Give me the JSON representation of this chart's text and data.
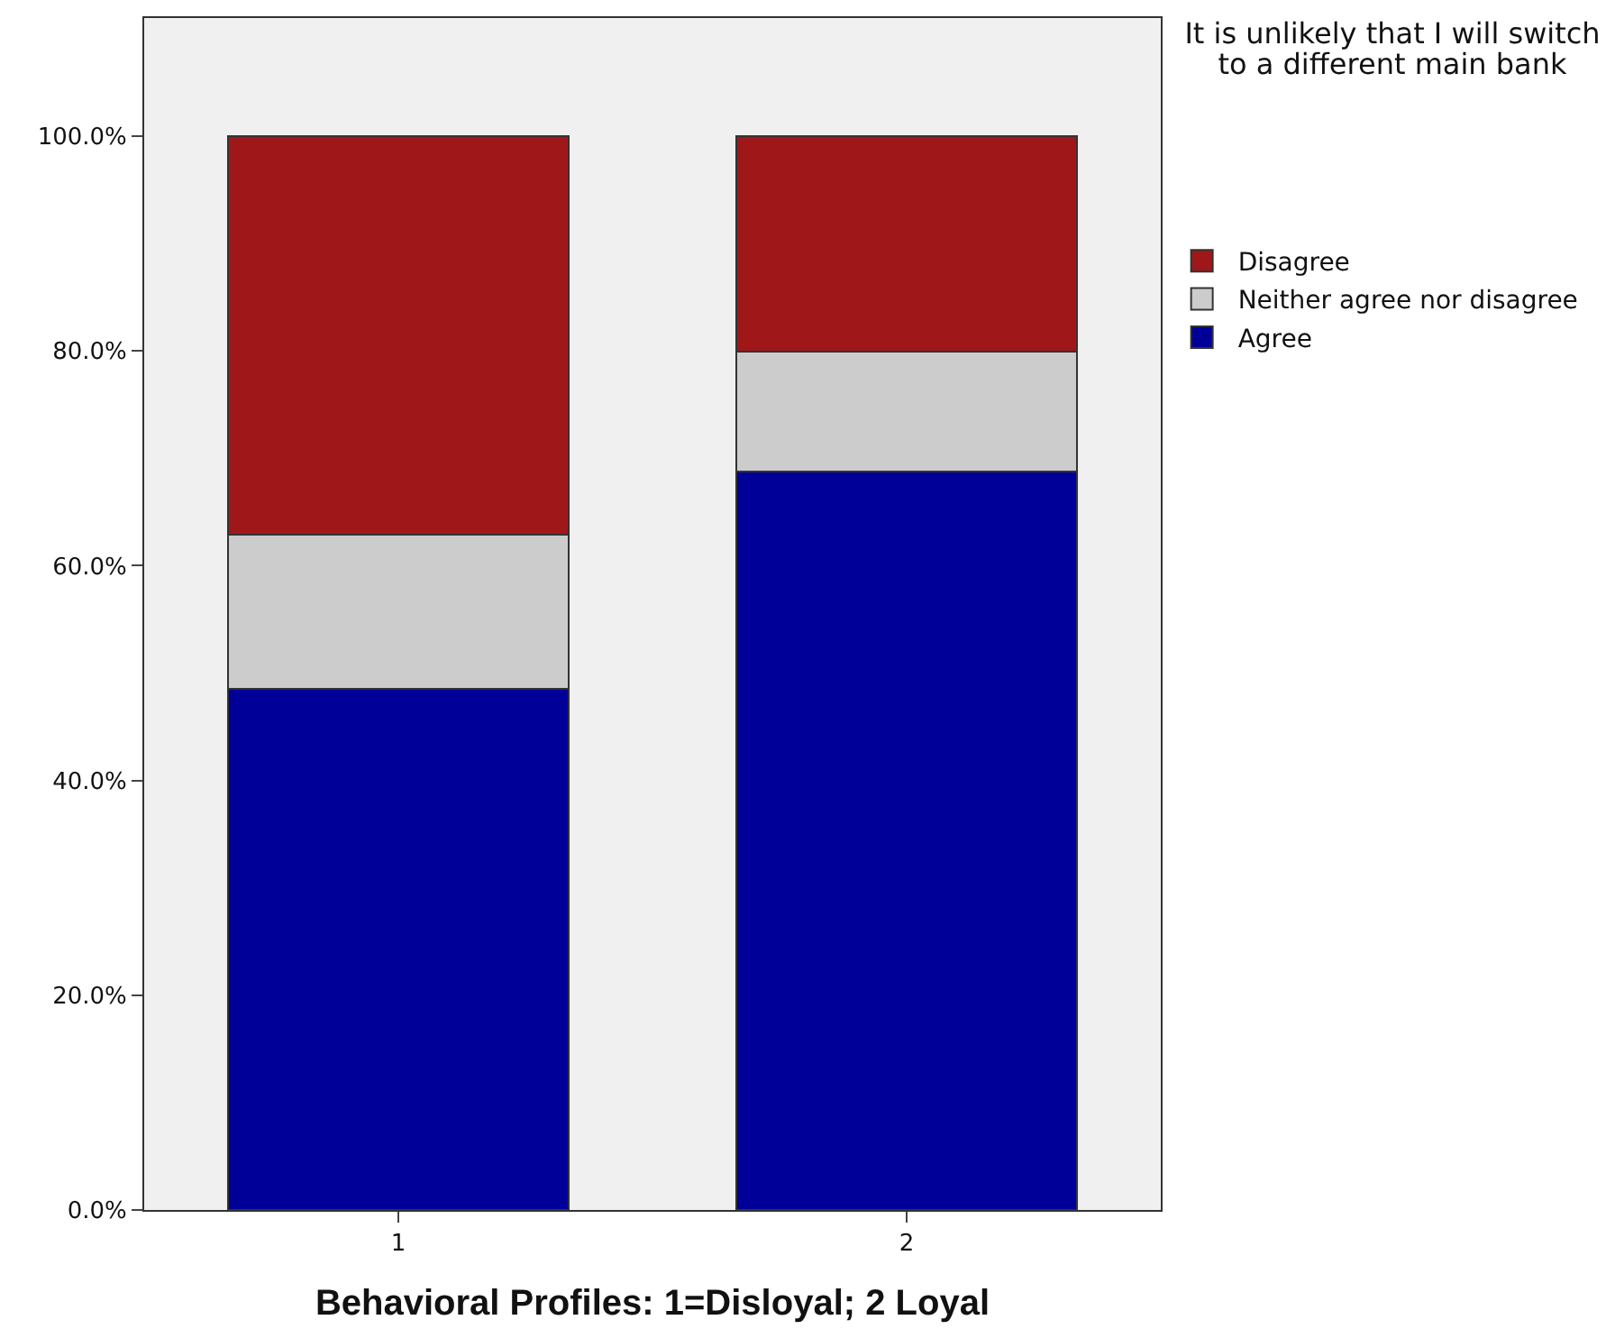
{
  "chart_data": {
    "type": "bar",
    "stacked": true,
    "xlabel": "Behavioral Profiles: 1=Disloyal; 2 Loyal",
    "legend_title": "It is unlikely that I will switch to a different main bank",
    "categories": [
      "1",
      "2"
    ],
    "series": [
      {
        "name": "Agree",
        "color": "#000099",
        "values": [
          48.5,
          68.8
        ]
      },
      {
        "name": "Neither agree nor disagree",
        "color": "#cccccc",
        "values": [
          14.4,
          11.1
        ]
      },
      {
        "name": "Disagree",
        "color": "#a0171a",
        "values": [
          37.1,
          20.1
        ]
      }
    ],
    "ylim": [
      0,
      111
    ],
    "yticks": [
      {
        "value": 0,
        "label": "0.0%"
      },
      {
        "value": 20,
        "label": "20.0%"
      },
      {
        "value": 40,
        "label": "40.0%"
      },
      {
        "value": 60,
        "label": "60.0%"
      },
      {
        "value": 80,
        "label": "80.0%"
      },
      {
        "value": 100,
        "label": "100.0%"
      }
    ],
    "grid": false,
    "legend": "right"
  }
}
